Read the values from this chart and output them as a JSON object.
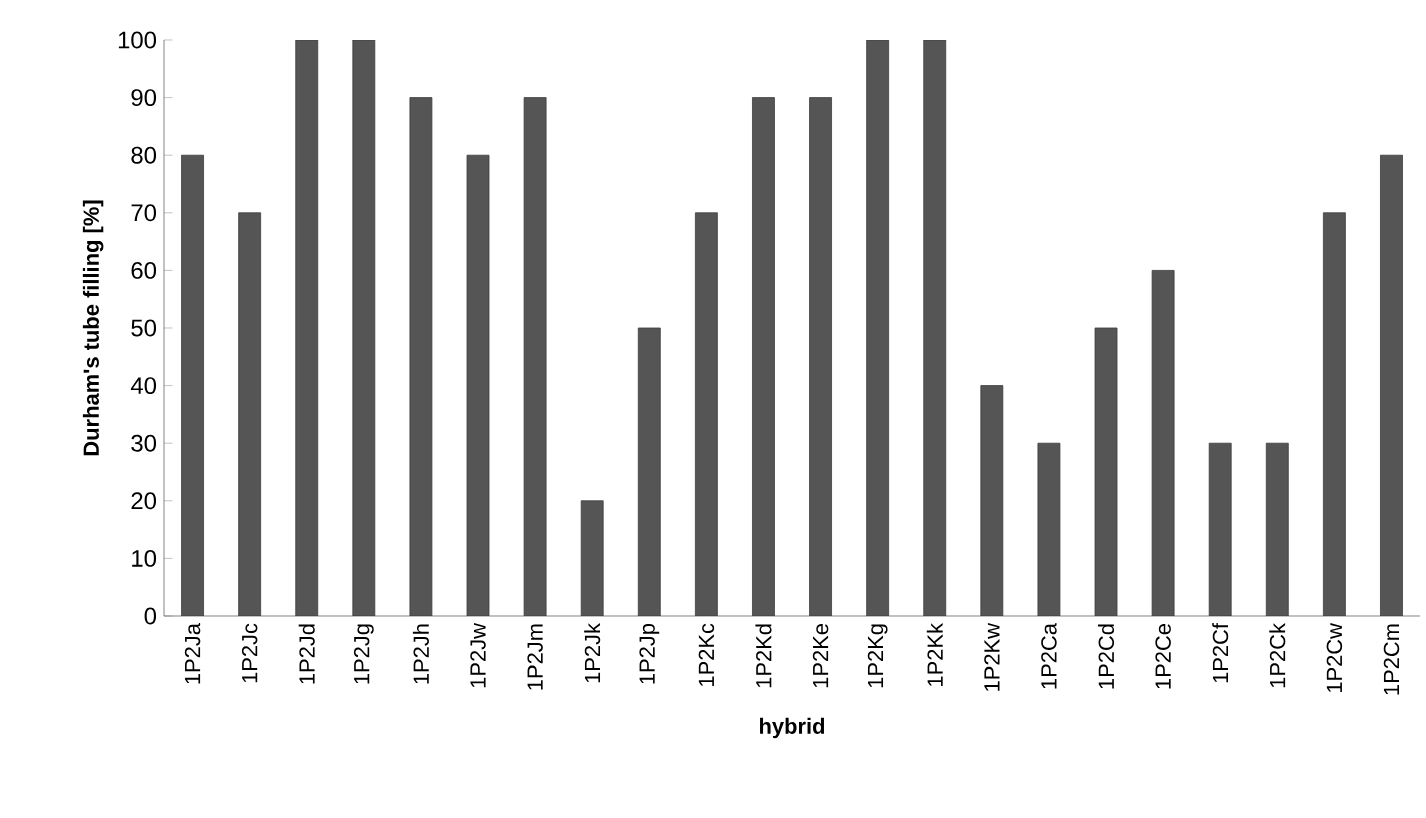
{
  "chart_data": {
    "type": "bar",
    "xlabel": "hybrid",
    "ylabel": "Durham's tube filling [%]",
    "categories": [
      "1P2Ja",
      "1P2Jc",
      "1P2Jd",
      "1P2Jg",
      "1P2Jh",
      "1P2Jw",
      "1P2Jm",
      "1P2Jk",
      "1P2Jp",
      "1P2Kc",
      "1P2Kd",
      "1P2Ke",
      "1P2Kg",
      "1P2Kk",
      "1P2Kw",
      "1P2Ca",
      "1P2Cd",
      "1P2Ce",
      "1P2Cf",
      "1P2Ck",
      "1P2Cw",
      "1P2Cm"
    ],
    "values": [
      80,
      70,
      100,
      100,
      90,
      80,
      90,
      20,
      50,
      70,
      90,
      90,
      100,
      100,
      40,
      30,
      50,
      60,
      30,
      30,
      70,
      80
    ],
    "color": "#555555",
    "ylim": [
      0,
      100
    ],
    "yticks": [
      0,
      10,
      20,
      30,
      40,
      50,
      60,
      70,
      80,
      90,
      100
    ],
    "grid": false
  }
}
